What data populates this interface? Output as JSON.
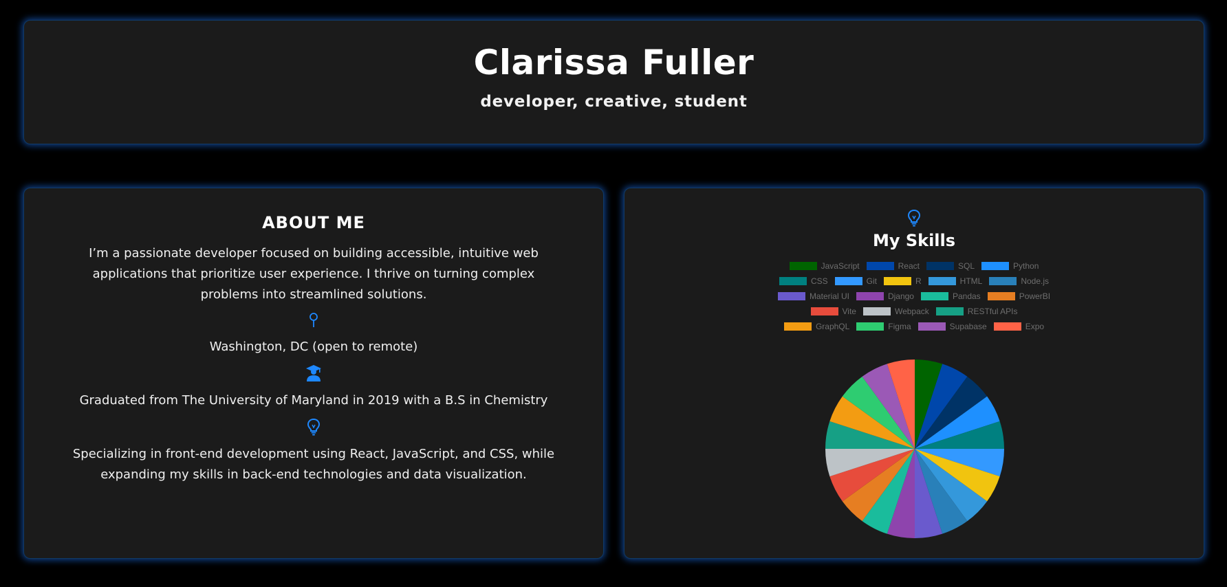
{
  "header": {
    "title": "Clarissa Fuller",
    "subtitle": "developer, creative, student"
  },
  "about": {
    "title": "ABOUT ME",
    "intro": "I’m a passionate developer focused on building accessible, intuitive web applications that prioritize user experience. I thrive on turning complex problems into streamlined solutions.",
    "location_icon": "map-pin-icon",
    "location": "Washington, DC (open to remote)",
    "education_icon": "graduate-icon",
    "education": "Graduated from The University of Maryland in 2019 with a B.S in Chemistry",
    "specialty_icon": "lightbulb-icon",
    "specialty": "Specializing in front-end development using React, JavaScript, and CSS, while expanding my skills in back-end technologies and data visualization."
  },
  "skills": {
    "icon": "lightbulb-icon",
    "title": "My Skills"
  },
  "colors": {
    "accent": "#1e88ff",
    "background": "#000000",
    "card": "#1b1b1b",
    "legend_text": "#6e6e6e"
  },
  "chart_data": {
    "type": "pie",
    "categories": [
      "JavaScript",
      "React",
      "SQL",
      "Python",
      "CSS",
      "Git",
      "R",
      "HTML",
      "Node.js",
      "Material UI",
      "Django",
      "Pandas",
      "PowerBI",
      "Vite",
      "Webpack",
      "RESTful APIs",
      "GraphQL",
      "Figma",
      "Supabase",
      "Expo"
    ],
    "values": [
      1,
      1,
      1,
      1,
      1,
      1,
      1,
      1,
      1,
      1,
      1,
      1,
      1,
      1,
      1,
      1,
      1,
      1,
      1,
      1
    ],
    "colors": [
      "#006400",
      "#0047ab",
      "#003366",
      "#1e90ff",
      "#008080",
      "#3399ff",
      "#f1c40f",
      "#3498db",
      "#2980b9",
      "#6a5acd",
      "#8e44ad",
      "#1abc9c",
      "#e67e22",
      "#e74c3c",
      "#bdc3c7",
      "#16a085",
      "#f39c12",
      "#2ecc71",
      "#9b59b6",
      "#ff6347"
    ],
    "legend": "top"
  }
}
